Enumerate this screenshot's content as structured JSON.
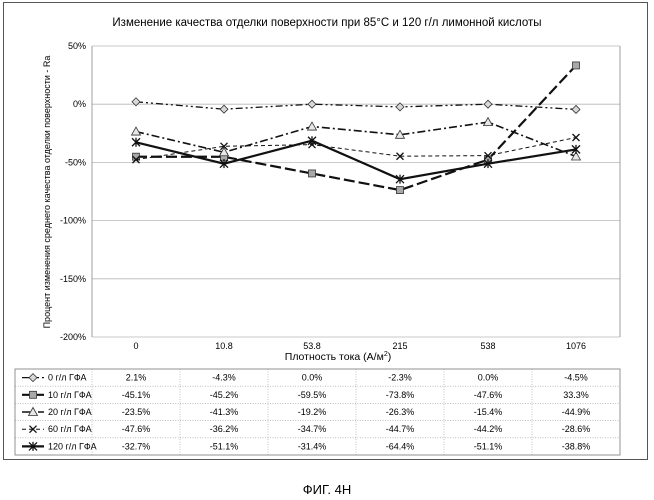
{
  "figure_caption": "ФИГ. 4Н",
  "chart_data": {
    "type": "line",
    "title": "Изменение качества отделки поверхности при 85°C и 120 г/л лимонной кислоты",
    "xlabel_main": "Плотность тока (А/м",
    "xlabel_sup": "2",
    "xlabel_close": ")",
    "ylabel": "Процент изменения среднего качества отделки поверхности - Ra",
    "categories": [
      "0",
      "10.8",
      "53.8",
      "215",
      "538",
      "1076"
    ],
    "y_ticks": [
      "50%",
      "0%",
      "-50%",
      "-100%",
      "-150%",
      "-200%"
    ],
    "y_tick_values": [
      50,
      0,
      -50,
      -100,
      -150,
      -200
    ],
    "ylim": [
      -200,
      50
    ],
    "grid": "horizontal",
    "legend": "data table below plot",
    "series": [
      {
        "name": "0 г/л ГФА",
        "values": [
          2.1,
          -4.3,
          0.0,
          -2.3,
          0.0,
          -4.5
        ],
        "labels": [
          "2.1%",
          "-4.3%",
          "0.0%",
          "-2.3%",
          "0.0%",
          "-4.5%"
        ],
        "marker": "diamond",
        "dash": "dashdotdot",
        "width": 1.3
      },
      {
        "name": "10 г/л ГФА",
        "values": [
          -45.1,
          -45.2,
          -59.5,
          -73.8,
          -47.6,
          33.3
        ],
        "labels": [
          "-45.1%",
          "-45.2%",
          "-59.5%",
          "-73.8%",
          "-47.6%",
          "33.3%"
        ],
        "marker": "square",
        "dash": "longdash",
        "width": 2.2
      },
      {
        "name": "20 г/л ГФА",
        "values": [
          -23.5,
          -41.3,
          -19.2,
          -26.3,
          -15.4,
          -44.9
        ],
        "labels": [
          "-23.5%",
          "-41.3%",
          "-19.2%",
          "-26.3%",
          "-15.4%",
          "-44.9%"
        ],
        "marker": "triangle",
        "dash": "dashdot",
        "width": 1.6
      },
      {
        "name": "60 г/л ГФА",
        "values": [
          -47.6,
          -36.2,
          -34.7,
          -44.7,
          -44.2,
          -28.6
        ],
        "labels": [
          "-47.6%",
          "-36.2%",
          "-34.7%",
          "-44.7%",
          "-44.2%",
          "-28.6%"
        ],
        "marker": "x",
        "dash": "shortdash",
        "width": 1.0
      },
      {
        "name": "120 г/л ГФА",
        "values": [
          -32.7,
          -51.1,
          -31.4,
          -64.4,
          -51.1,
          -38.8
        ],
        "labels": [
          "-32.7%",
          "-51.1%",
          "-31.4%",
          "-64.4%",
          "-51.1%",
          "-38.8%"
        ],
        "marker": "star",
        "dash": "solid",
        "width": 2.2
      }
    ]
  }
}
